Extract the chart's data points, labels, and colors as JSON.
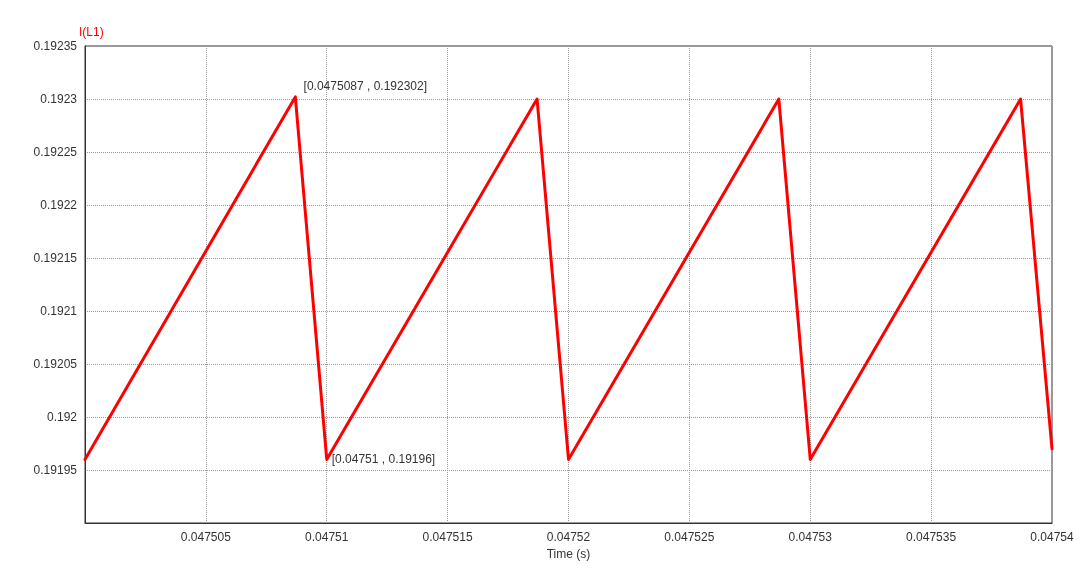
{
  "chart_data": {
    "type": "line",
    "xlabel": "Time (s)",
    "ylabel": "I(L1)",
    "series": [
      {
        "color": "#ff0000",
        "x": [
          0.0475,
          0.0475087,
          0.04751,
          0.0475187,
          0.04752,
          0.0475287,
          0.04753,
          0.0475387,
          0.04754
        ],
        "values": [
          0.19196,
          0.192302,
          0.19196,
          0.1923,
          0.19196,
          0.1923,
          0.19196,
          0.1923,
          0.19197
        ]
      }
    ],
    "xlim": [
      0.0475,
      0.04754
    ],
    "xticks": [
      0.047505,
      0.04751,
      0.047515,
      0.04752,
      0.047525,
      0.04753,
      0.047535,
      0.04754
    ],
    "ylim": [
      0.1919,
      0.19235
    ],
    "yticks": [
      0.19195,
      0.192,
      0.19205,
      0.1921,
      0.19215,
      0.1922,
      0.19225,
      0.1923,
      0.19235
    ],
    "annotations": [
      {
        "text": "[0.0475087 , 0.192302]",
        "x": 0.0475087,
        "y": 0.192302
      },
      {
        "text": "[0.04751 , 0.19196]",
        "x": 0.04751,
        "y": 0.19196
      }
    ],
    "grid": true,
    "marker": "none",
    "line_style": "solid"
  }
}
